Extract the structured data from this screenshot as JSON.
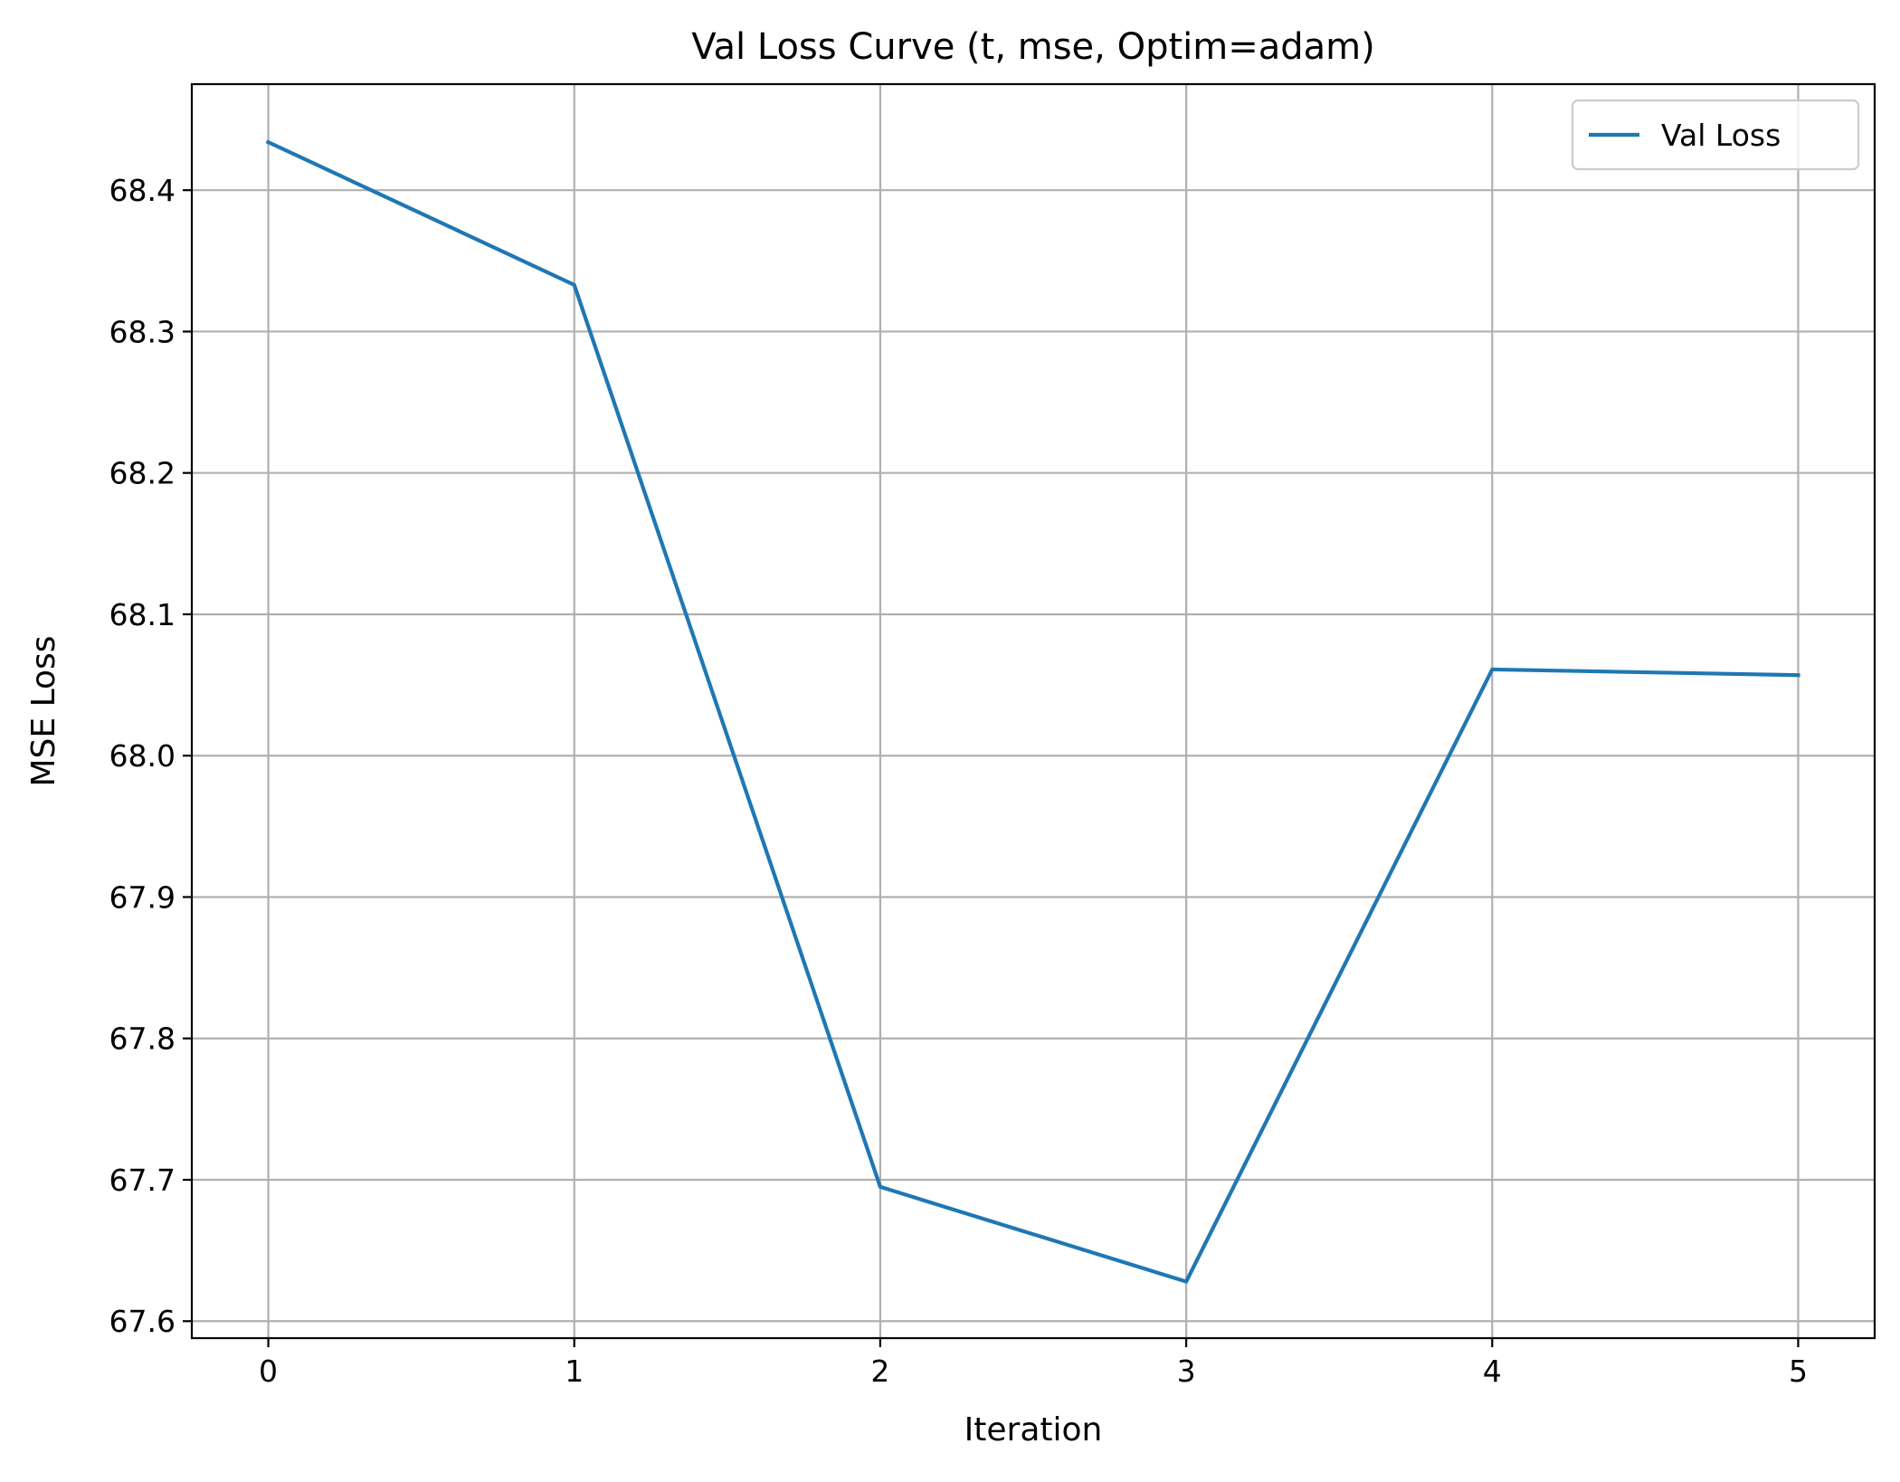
{
  "chart_data": {
    "type": "line",
    "title": "Val Loss Curve (t, mse, Optim=adam)",
    "xlabel": "Iteration",
    "ylabel": "MSE Loss",
    "x": [
      0,
      1,
      2,
      3,
      4,
      5
    ],
    "xticks": [
      0,
      1,
      2,
      3,
      4,
      5
    ],
    "xtick_labels": [
      "0",
      "1",
      "2",
      "3",
      "4",
      "5"
    ],
    "yticks": [
      67.6,
      67.7,
      67.8,
      67.9,
      68.0,
      68.1,
      68.2,
      68.3,
      68.4
    ],
    "ytick_labels": [
      "67.6",
      "67.7",
      "67.8",
      "67.9",
      "68.0",
      "68.1",
      "68.2",
      "68.3",
      "68.4"
    ],
    "xlim": [
      -0.25,
      5.25
    ],
    "ylim": [
      67.588,
      68.475
    ],
    "grid": true,
    "legend_position": "top-right",
    "series": [
      {
        "name": "Val Loss",
        "color": "#1f77b4",
        "values": [
          68.434,
          68.333,
          67.695,
          67.628,
          68.061,
          68.057
        ]
      }
    ]
  }
}
